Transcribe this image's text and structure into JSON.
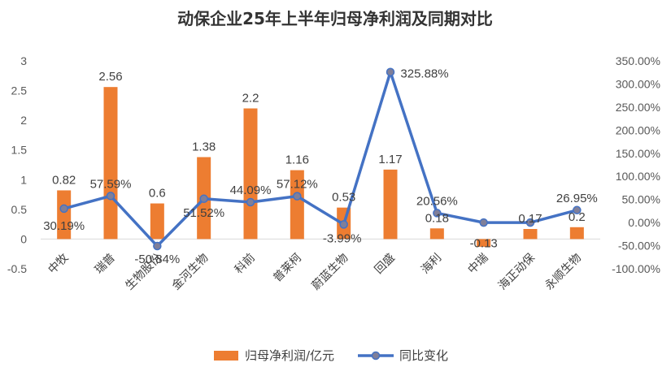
{
  "chart_data": {
    "type": "bar+line",
    "title": "动保企业25年上半年归母净利润及同期对比",
    "categories": [
      "中牧",
      "瑞普",
      "生物股份",
      "金河生物",
      "科前",
      "普莱柯",
      "蔚蓝生物",
      "回盛",
      "海利",
      "中瑞",
      "海正动保",
      "永顺生物"
    ],
    "series": [
      {
        "name": "归母净利润/亿元",
        "type": "bar",
        "axis": "left",
        "values": [
          0.82,
          2.56,
          0.6,
          1.38,
          2.2,
          1.16,
          0.53,
          1.17,
          0.18,
          -0.13,
          0.17,
          0.2
        ],
        "labels": [
          "0.82",
          "2.56",
          "0.6",
          "1.38",
          "2.2",
          "1.16",
          "0.53",
          "1.17",
          "0.18",
          "-0.13",
          "0.17",
          "0.2"
        ],
        "color": "#ED7D31"
      },
      {
        "name": "同比变化",
        "type": "line",
        "axis": "right",
        "values": [
          30.19,
          57.59,
          -50.84,
          51.52,
          44.09,
          57.12,
          -3.99,
          325.88,
          20.56,
          0,
          0,
          26.95
        ],
        "labels": [
          "30.19%",
          "57.59%",
          "-50.84%",
          "51.52%",
          "44.09%",
          "57.12%",
          "-3.99%",
          "325.88%",
          "20.56%",
          "",
          "",
          "26.95%"
        ],
        "color": "#4472C4"
      }
    ],
    "y_left": {
      "min": -0.5,
      "max": 3,
      "step": 0.5,
      "ticks": [
        "-0.5",
        "0",
        "0.5",
        "1",
        "1.5",
        "2",
        "2.5",
        "3"
      ]
    },
    "y_right": {
      "min": -100,
      "max": 350,
      "step": 50,
      "ticks": [
        "-100.00%",
        "-50.00%",
        "0.00%",
        "50.00%",
        "100.00%",
        "150.00%",
        "200.00%",
        "250.00%",
        "300.00%",
        "350.00%"
      ]
    },
    "grid": false,
    "legend": "bottom",
    "legend_items": [
      {
        "label": "归母净利润/亿元",
        "kind": "bar",
        "color": "#ED7D31"
      },
      {
        "label": "同比变化",
        "kind": "line",
        "color": "#4472C4"
      }
    ]
  }
}
